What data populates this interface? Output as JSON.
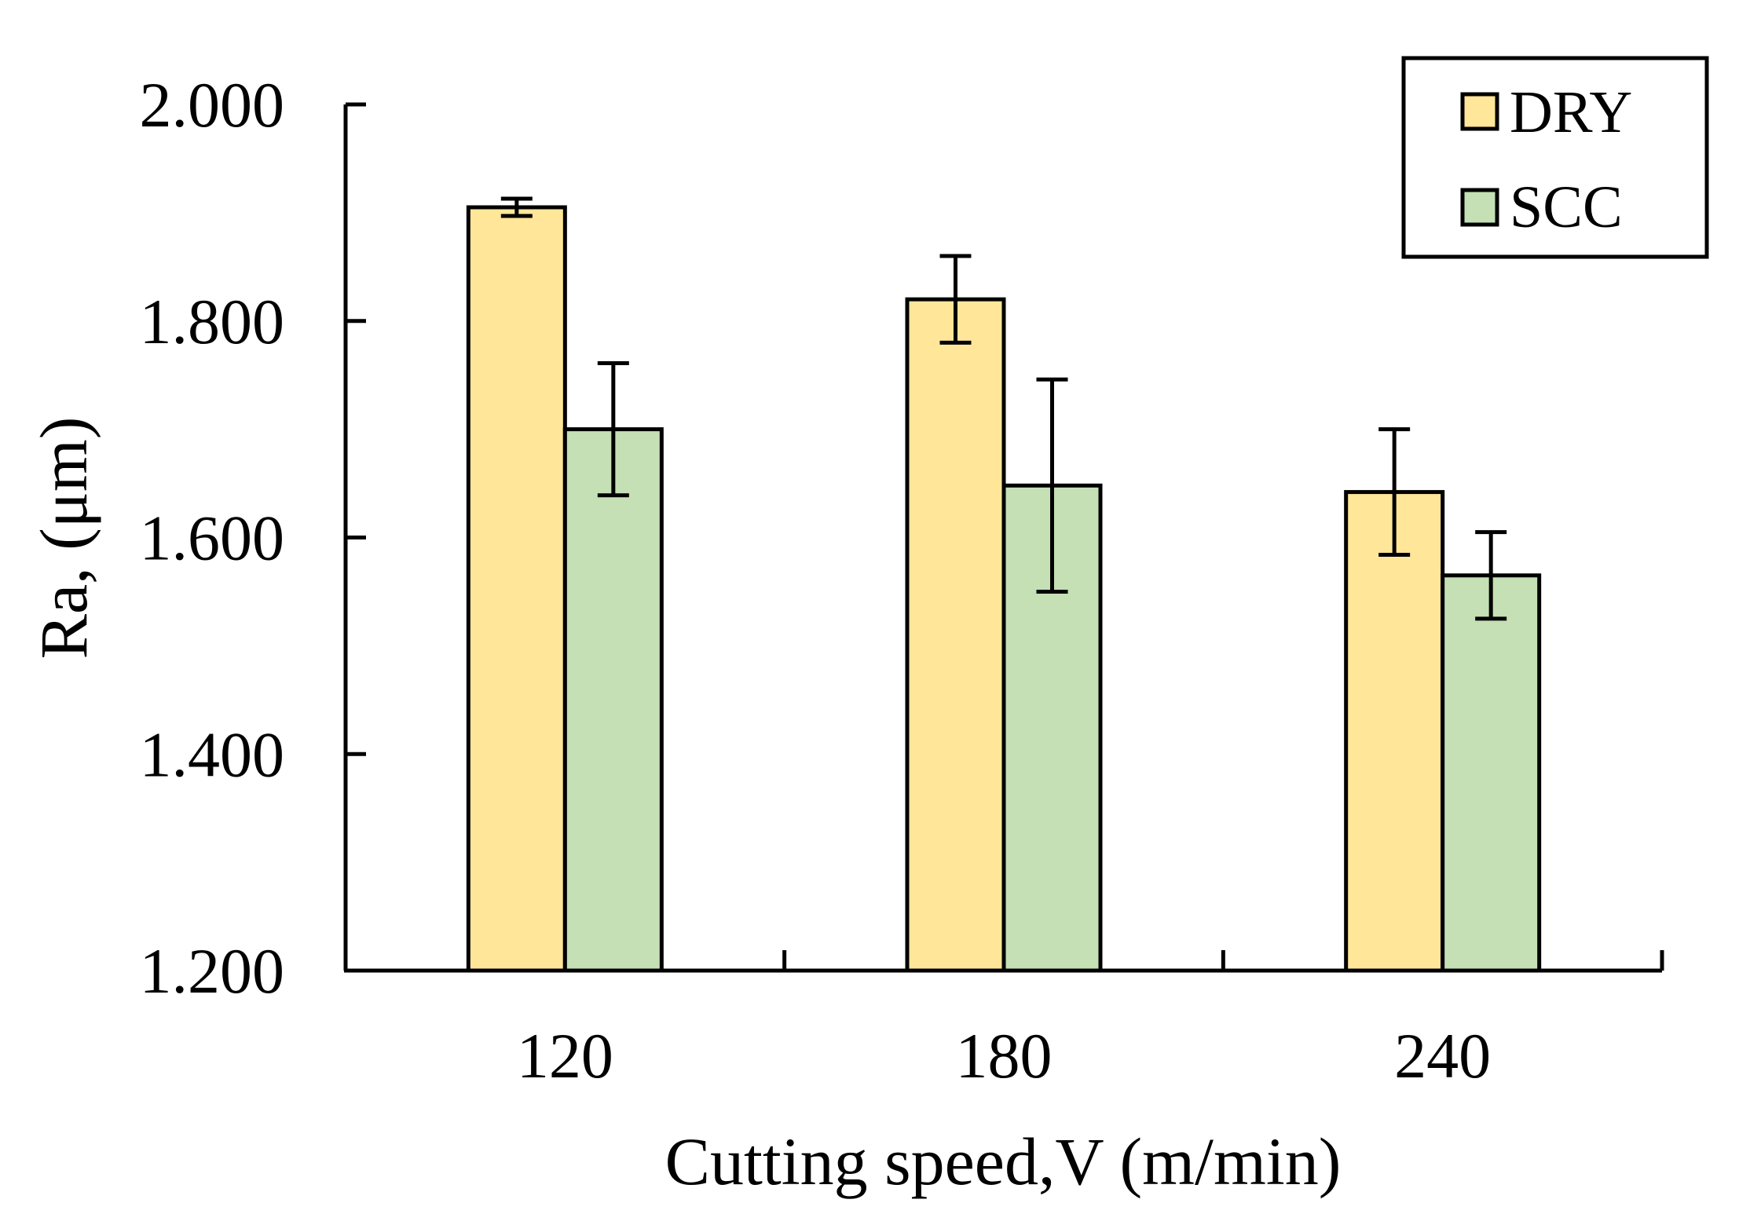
{
  "chart_data": {
    "type": "bar",
    "title": "",
    "xlabel": "Cutting speed,V (m/min)",
    "ylabel": "Ra, (μm)",
    "categories": [
      "120",
      "180",
      "240"
    ],
    "ylim": [
      1.2,
      2.0
    ],
    "yticks": [
      2.0,
      1.8,
      1.6,
      1.4,
      1.2
    ],
    "ytick_labels": [
      "2.000",
      "1.800",
      "1.600",
      "1.400",
      "1.200"
    ],
    "grid": false,
    "legend_position": "top-right",
    "series": [
      {
        "name": "DRY",
        "color": "#FFE699",
        "values": [
          1.905,
          1.82,
          1.642
        ],
        "errors": [
          0.008,
          0.04,
          0.058
        ]
      },
      {
        "name": "SCC",
        "color": "#C5E0B4",
        "values": [
          1.7,
          1.648,
          1.565
        ],
        "errors": [
          0.061,
          0.098,
          0.04
        ]
      }
    ]
  }
}
